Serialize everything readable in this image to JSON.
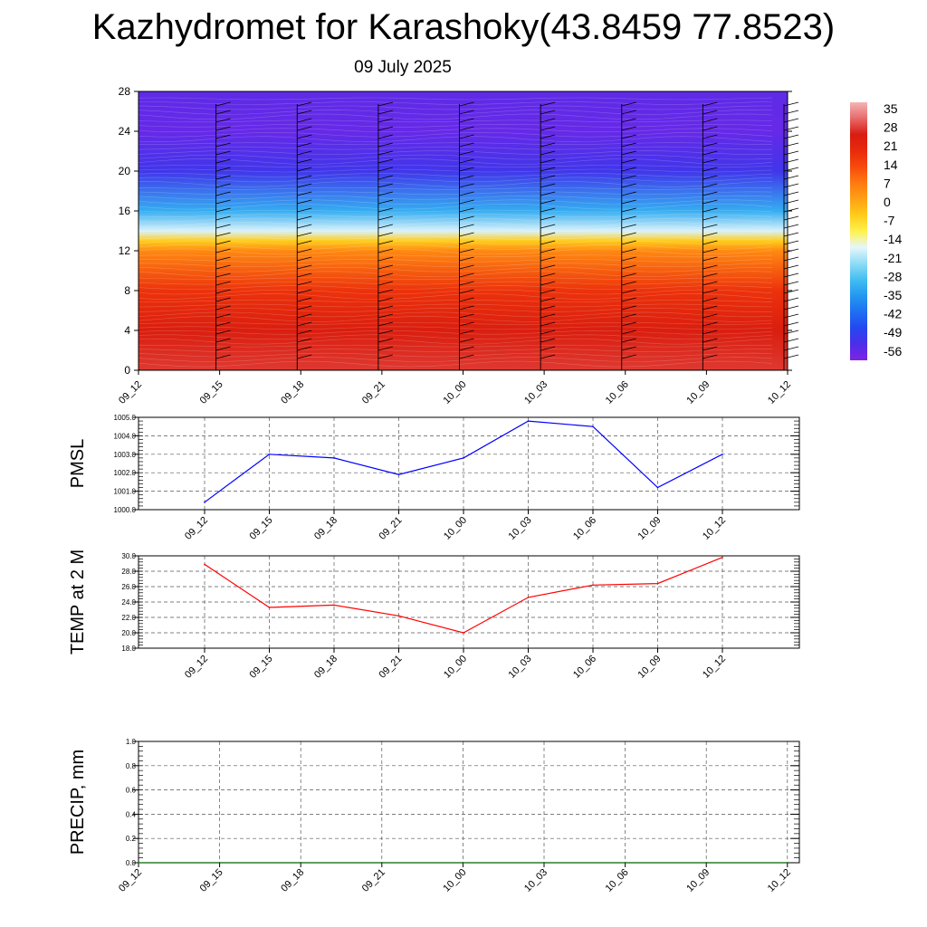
{
  "title": "Kazhydromet for Karashoky(43.8459 77.8523)",
  "date": "09 July 2025",
  "colors": {
    "pmsl_line": "#0000ff",
    "temp_line": "#ff0000",
    "precip_line": "#006400",
    "palette": [
      "#7e24e6",
      "#4d2ee8",
      "#2348f0",
      "#1e6ff2",
      "#2398f0",
      "#43bdf2",
      "#8edcf5",
      "#e6f6fb",
      "#fff24d",
      "#ffcc1a",
      "#ffa114",
      "#ff7a10",
      "#f84a0c",
      "#e82a0a",
      "#d81c10",
      "#e86a6a",
      "#f4b4b4"
    ]
  },
  "chart_data": [
    {
      "type": "heatmap",
      "title": "",
      "xlabel": "",
      "ylabel": "",
      "x": [
        "09_12",
        "09_15",
        "09_18",
        "09_21",
        "10_00",
        "10_03",
        "10_06",
        "10_09",
        "10_12"
      ],
      "yticks": [
        0,
        4,
        8,
        12,
        16,
        20,
        24,
        28
      ],
      "ylim": [
        0,
        28
      ],
      "colorbar": {
        "labels": [
          "35",
          "28",
          "21",
          "14",
          "7",
          "0",
          "-7",
          "-14",
          "-21",
          "-28",
          "-35",
          "-42",
          "-49",
          "-56"
        ],
        "range": [
          -60,
          38
        ]
      },
      "temperature_profile": {
        "heights": [
          0,
          4,
          8,
          12,
          13,
          14,
          16,
          20,
          24,
          28
        ],
        "values": [
          28,
          25,
          18,
          5,
          -5,
          -18,
          -32,
          -52,
          -57,
          -56
        ]
      },
      "wind_barbs": "present at each time step"
    },
    {
      "type": "line",
      "ylabel": "PMSL",
      "x": [
        "09_12",
        "09_15",
        "09_18",
        "09_21",
        "10_00",
        "10_03",
        "10_06",
        "10_09",
        "10_12"
      ],
      "series": [
        {
          "values": [
            1000.4,
            1003.0,
            1002.8,
            1001.9,
            1002.8,
            1004.8,
            1004.5,
            1001.2,
            1003.0
          ]
        }
      ],
      "ylim": [
        1000.0,
        1005.0
      ],
      "yticks": [
        "1000.0",
        "1001.0",
        "1002.0",
        "1003.0",
        "1004.0",
        "1005.0"
      ],
      "grid": true
    },
    {
      "type": "line",
      "ylabel": "TEMP at 2 M",
      "x": [
        "09_12",
        "09_15",
        "09_18",
        "09_21",
        "10_00",
        "10_03",
        "10_06",
        "10_09",
        "10_12"
      ],
      "series": [
        {
          "values": [
            28.9,
            23.3,
            23.6,
            22.2,
            20.0,
            24.6,
            26.2,
            26.4,
            29.8
          ]
        }
      ],
      "ylim": [
        18.0,
        30.0
      ],
      "yticks": [
        "18.0",
        "20.0",
        "22.0",
        "24.0",
        "26.0",
        "28.0",
        "30.0"
      ],
      "grid": true
    },
    {
      "type": "line",
      "ylabel": "PRECIP, mm",
      "x": [
        "09_12",
        "09_15",
        "09_18",
        "09_21",
        "10_00",
        "10_03",
        "10_06",
        "10_09",
        "10_12"
      ],
      "series": [
        {
          "values": [
            0,
            0,
            0,
            0,
            0,
            0,
            0,
            0,
            0
          ]
        }
      ],
      "ylim": [
        0.0,
        1.0
      ],
      "yticks": [
        "0.0",
        "0.2",
        "0.4",
        "0.6",
        "0.8",
        "1.0"
      ],
      "grid": true
    }
  ]
}
